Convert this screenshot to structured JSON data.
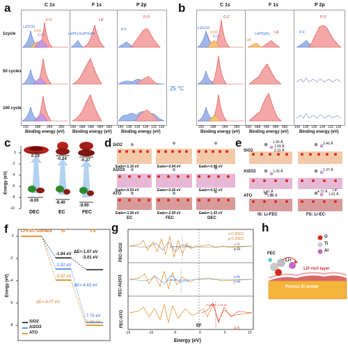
{
  "panels": {
    "a": {
      "label": "a",
      "col_titles": [
        "C 1s",
        "F 1s",
        "P 2p"
      ],
      "row_labels": [
        "1cycle",
        "50 cycles",
        "100 cycles"
      ],
      "axis_label": "Binding energy (eV)",
      "c1s_ticks": [
        "292",
        "288",
        "284",
        "280"
      ],
      "f1s_ticks": [
        "690",
        "688",
        "686",
        "684",
        "682"
      ],
      "p2p_ticks": [
        "140",
        "138",
        "136",
        "134",
        "132",
        "130"
      ],
      "c1s_annotations": [
        "Li2CO3",
        "C=O",
        "C-O",
        "C-C"
      ],
      "f1s_annotations": [
        "LixPFy/LixPOyFz",
        "LiF"
      ],
      "p2p_annotations": [
        "P-F",
        "P-O"
      ]
    },
    "b": {
      "label": "b",
      "col_titles": [
        "C 1s",
        "F 1s",
        "P 2p"
      ],
      "axis_label": "Binding energy (eV)",
      "c1s_ticks": [
        "292",
        "288",
        "284",
        "280"
      ],
      "f1s_ticks": [
        "690",
        "688",
        "686",
        "684",
        "682"
      ],
      "p2p_ticks": [
        "140",
        "138",
        "136",
        "134",
        "132",
        "130"
      ],
      "c1s_annotations": [
        "Li2CO3",
        "C=O",
        "C-O",
        "C-C"
      ],
      "f1s_annotations": [
        "LiF",
        "LixPOyFz",
        "LiF"
      ],
      "p2p_annotations": [
        "P-F",
        "P-O"
      ]
    },
    "temperature": "25 °C",
    "c": {
      "label": "c",
      "ylabel": "Energy (eV)",
      "yticks": [
        "0",
        "-2",
        "-4",
        "-6",
        "-8",
        "-10"
      ],
      "molecules": [
        "DEC",
        "EC",
        "FEC"
      ],
      "lumo": [
        "0.19",
        "-0.24",
        "-0.37"
      ],
      "homo": [
        "-8.00",
        "-8.40",
        "-8.90"
      ]
    },
    "d": {
      "label": "d",
      "rows": [
        "SiO2",
        "Al2O3",
        "ATO"
      ],
      "cols": [
        "EC",
        "FEC",
        "DEC"
      ],
      "eads": [
        [
          "Eads=-1.10 eV",
          "Eads=-0.94 eV",
          "Eads=-0.96 eV"
        ],
        [
          "Eads=-0.53 eV",
          "Eads=-0.26 eV",
          "Eads=-0.57 eV"
        ],
        [
          "Eads=-1.30 eV",
          "Eads=-2.09 eV",
          "Eads=-1.43 eV"
        ]
      ]
    },
    "e": {
      "label": "e",
      "rows": [
        "SiO2",
        "Al2O3",
        "ATO"
      ],
      "captions": [
        "IS: Li-FEC",
        "FS: Li-EC·"
      ],
      "bond_labels": [
        "1.95 Å",
        "1.99 Å",
        "2.32 Å",
        "2.46 Å",
        "1.36 Å",
        "1.37 Å",
        "1.41 Å",
        "2.32 Å",
        "4.72 Å",
        "1.91 Å",
        "LiF"
      ]
    },
    "f": {
      "label": "f",
      "ylabel": "Energy (eV)",
      "yticks": [
        "0",
        "-2",
        "-4",
        "-6",
        "-8"
      ],
      "start_label": "Li+FEC-Surface",
      "is_label": "IS",
      "fs_label": "FS",
      "legend": [
        "SiO2",
        "Al2O3",
        "ATO"
      ],
      "is_values": [
        "-1.94 eV",
        "-2.92 eV",
        "-3.92 eV"
      ],
      "fs_values": [
        "-3.01 eV",
        "-7.75 eV",
        "-7.99 eV"
      ],
      "deltas": [
        "ΔE=-1.07 eV",
        "ΔE=-4.83 eV",
        "ΔE=-4.07 eV"
      ],
      "colors": {
        "SiO2": "#333333",
        "Al2O3": "#4a90d9",
        "ATO": "#e08a1e"
      }
    },
    "g": {
      "label": "g",
      "xlabel": "Energy (eV)",
      "xticks": [
        "-15",
        "-10",
        "-5",
        "0",
        "5",
        "10"
      ],
      "rows": [
        "FEC-SiO2",
        "FEC-Al2O3",
        "FEC-ATO"
      ],
      "ef_label": "EF",
      "legend_sio2": [
        "s-O (FEC)",
        "p-O (FEC)",
        "s-Si",
        "p-Si"
      ],
      "legend_al": [
        "s-Al",
        "p-Al"
      ],
      "legend_ato": [
        "d-Ti"
      ],
      "centers": [
        "p-center: -2.36 eV",
        "p-center: -3.00 eV",
        "d-center: 1.84 eV"
      ]
    },
    "h": {
      "label": "h",
      "fec_label": "FEC",
      "li_label": "Li+",
      "layer_label": "LiF-rich layer",
      "anode_label": "Porous Si anode",
      "legend": [
        "O",
        "Ti",
        "Al"
      ]
    }
  }
}
